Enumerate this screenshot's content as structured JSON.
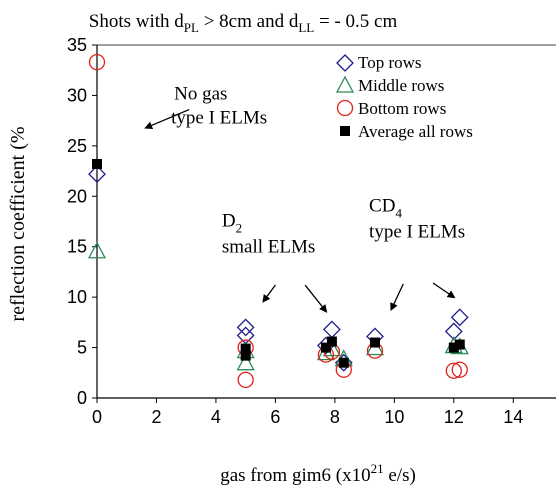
{
  "chart_data": {
    "type": "scatter",
    "title_main": "Shots with d",
    "title_sub1": "PL",
    "title_mid": " > 8cm and d",
    "title_sub2": "LL",
    "title_end": " = - 0.5 cm",
    "xlabel_main": "gas from gim6 (x10",
    "xlabel_sup": "21",
    "xlabel_end": " e/s)",
    "ylabel": "reflection coefficient (%",
    "xlim": [
      0,
      15
    ],
    "ylim": [
      0,
      35
    ],
    "xticks": [
      0,
      2,
      4,
      6,
      8,
      10,
      12,
      14
    ],
    "yticks": [
      0,
      5,
      10,
      15,
      20,
      25,
      30,
      35
    ],
    "grid": false,
    "legend_position": "top-right",
    "series": [
      {
        "name": "Top rows",
        "marker": "diamond",
        "color": "#1c1c8c",
        "points": [
          [
            0,
            22.2
          ],
          [
            5,
            6.2
          ],
          [
            5,
            7.0
          ],
          [
            7.7,
            5.2
          ],
          [
            7.9,
            6.8
          ],
          [
            8.3,
            3.5
          ],
          [
            9.35,
            6.1
          ],
          [
            12.0,
            6.6
          ],
          [
            12.2,
            8.0
          ]
        ]
      },
      {
        "name": "Middle rows",
        "marker": "triangle",
        "color": "#2e8b57",
        "points": [
          [
            0,
            14.5
          ],
          [
            5,
            3.4
          ],
          [
            5,
            4.6
          ],
          [
            7.7,
            4.4
          ],
          [
            7.9,
            4.8
          ],
          [
            8.3,
            3.8
          ],
          [
            9.35,
            4.9
          ],
          [
            12.0,
            5.1
          ],
          [
            12.2,
            5.0
          ]
        ]
      },
      {
        "name": "Bottom rows",
        "marker": "circle",
        "color": "#e0201a",
        "points": [
          [
            0,
            33.3
          ],
          [
            5,
            1.8
          ],
          [
            5,
            5.0
          ],
          [
            7.7,
            4.3
          ],
          [
            7.9,
            4.6
          ],
          [
            8.3,
            2.8
          ],
          [
            9.35,
            4.7
          ],
          [
            12.0,
            2.7
          ],
          [
            12.2,
            2.8
          ]
        ]
      },
      {
        "name": "Average all rows",
        "marker": "square",
        "color": "#000000",
        "points": [
          [
            0,
            23.2
          ],
          [
            5,
            4.2
          ],
          [
            5,
            4.9
          ],
          [
            7.7,
            5.0
          ],
          [
            7.9,
            5.6
          ],
          [
            8.3,
            3.5
          ],
          [
            9.35,
            5.5
          ],
          [
            12.0,
            5.0
          ],
          [
            12.2,
            5.3
          ]
        ]
      }
    ],
    "annotations": [
      {
        "id": "no-gas",
        "lines": [
          "No gas",
          "type I ELMs"
        ],
        "x": 1.35,
        "y": 29.0,
        "arrow_from": [
          3.1,
          28.6
        ],
        "arrow_to": [
          1.65,
          26.8
        ]
      },
      {
        "id": "d2",
        "line1_main": "D",
        "line1_sub": "2",
        "line2": "small ELMs",
        "x": 4.2,
        "y": 17.0,
        "arrows": [
          {
            "from": [
              6.0,
              11.2
            ],
            "to": [
              5.6,
              9.6
            ]
          },
          {
            "from": [
              7.0,
              11.2
            ],
            "to": [
              7.7,
              8.6
            ]
          }
        ]
      },
      {
        "id": "cd4",
        "line1_main": "CD",
        "line1_sub": "4",
        "line2": "type I ELMs",
        "x": 9.15,
        "y": 18.5,
        "arrows": [
          {
            "from": [
              10.3,
              11.3
            ],
            "to": [
              9.9,
              8.8
            ]
          },
          {
            "from": [
              11.3,
              11.4
            ],
            "to": [
              12.0,
              10.0
            ]
          }
        ]
      }
    ]
  }
}
